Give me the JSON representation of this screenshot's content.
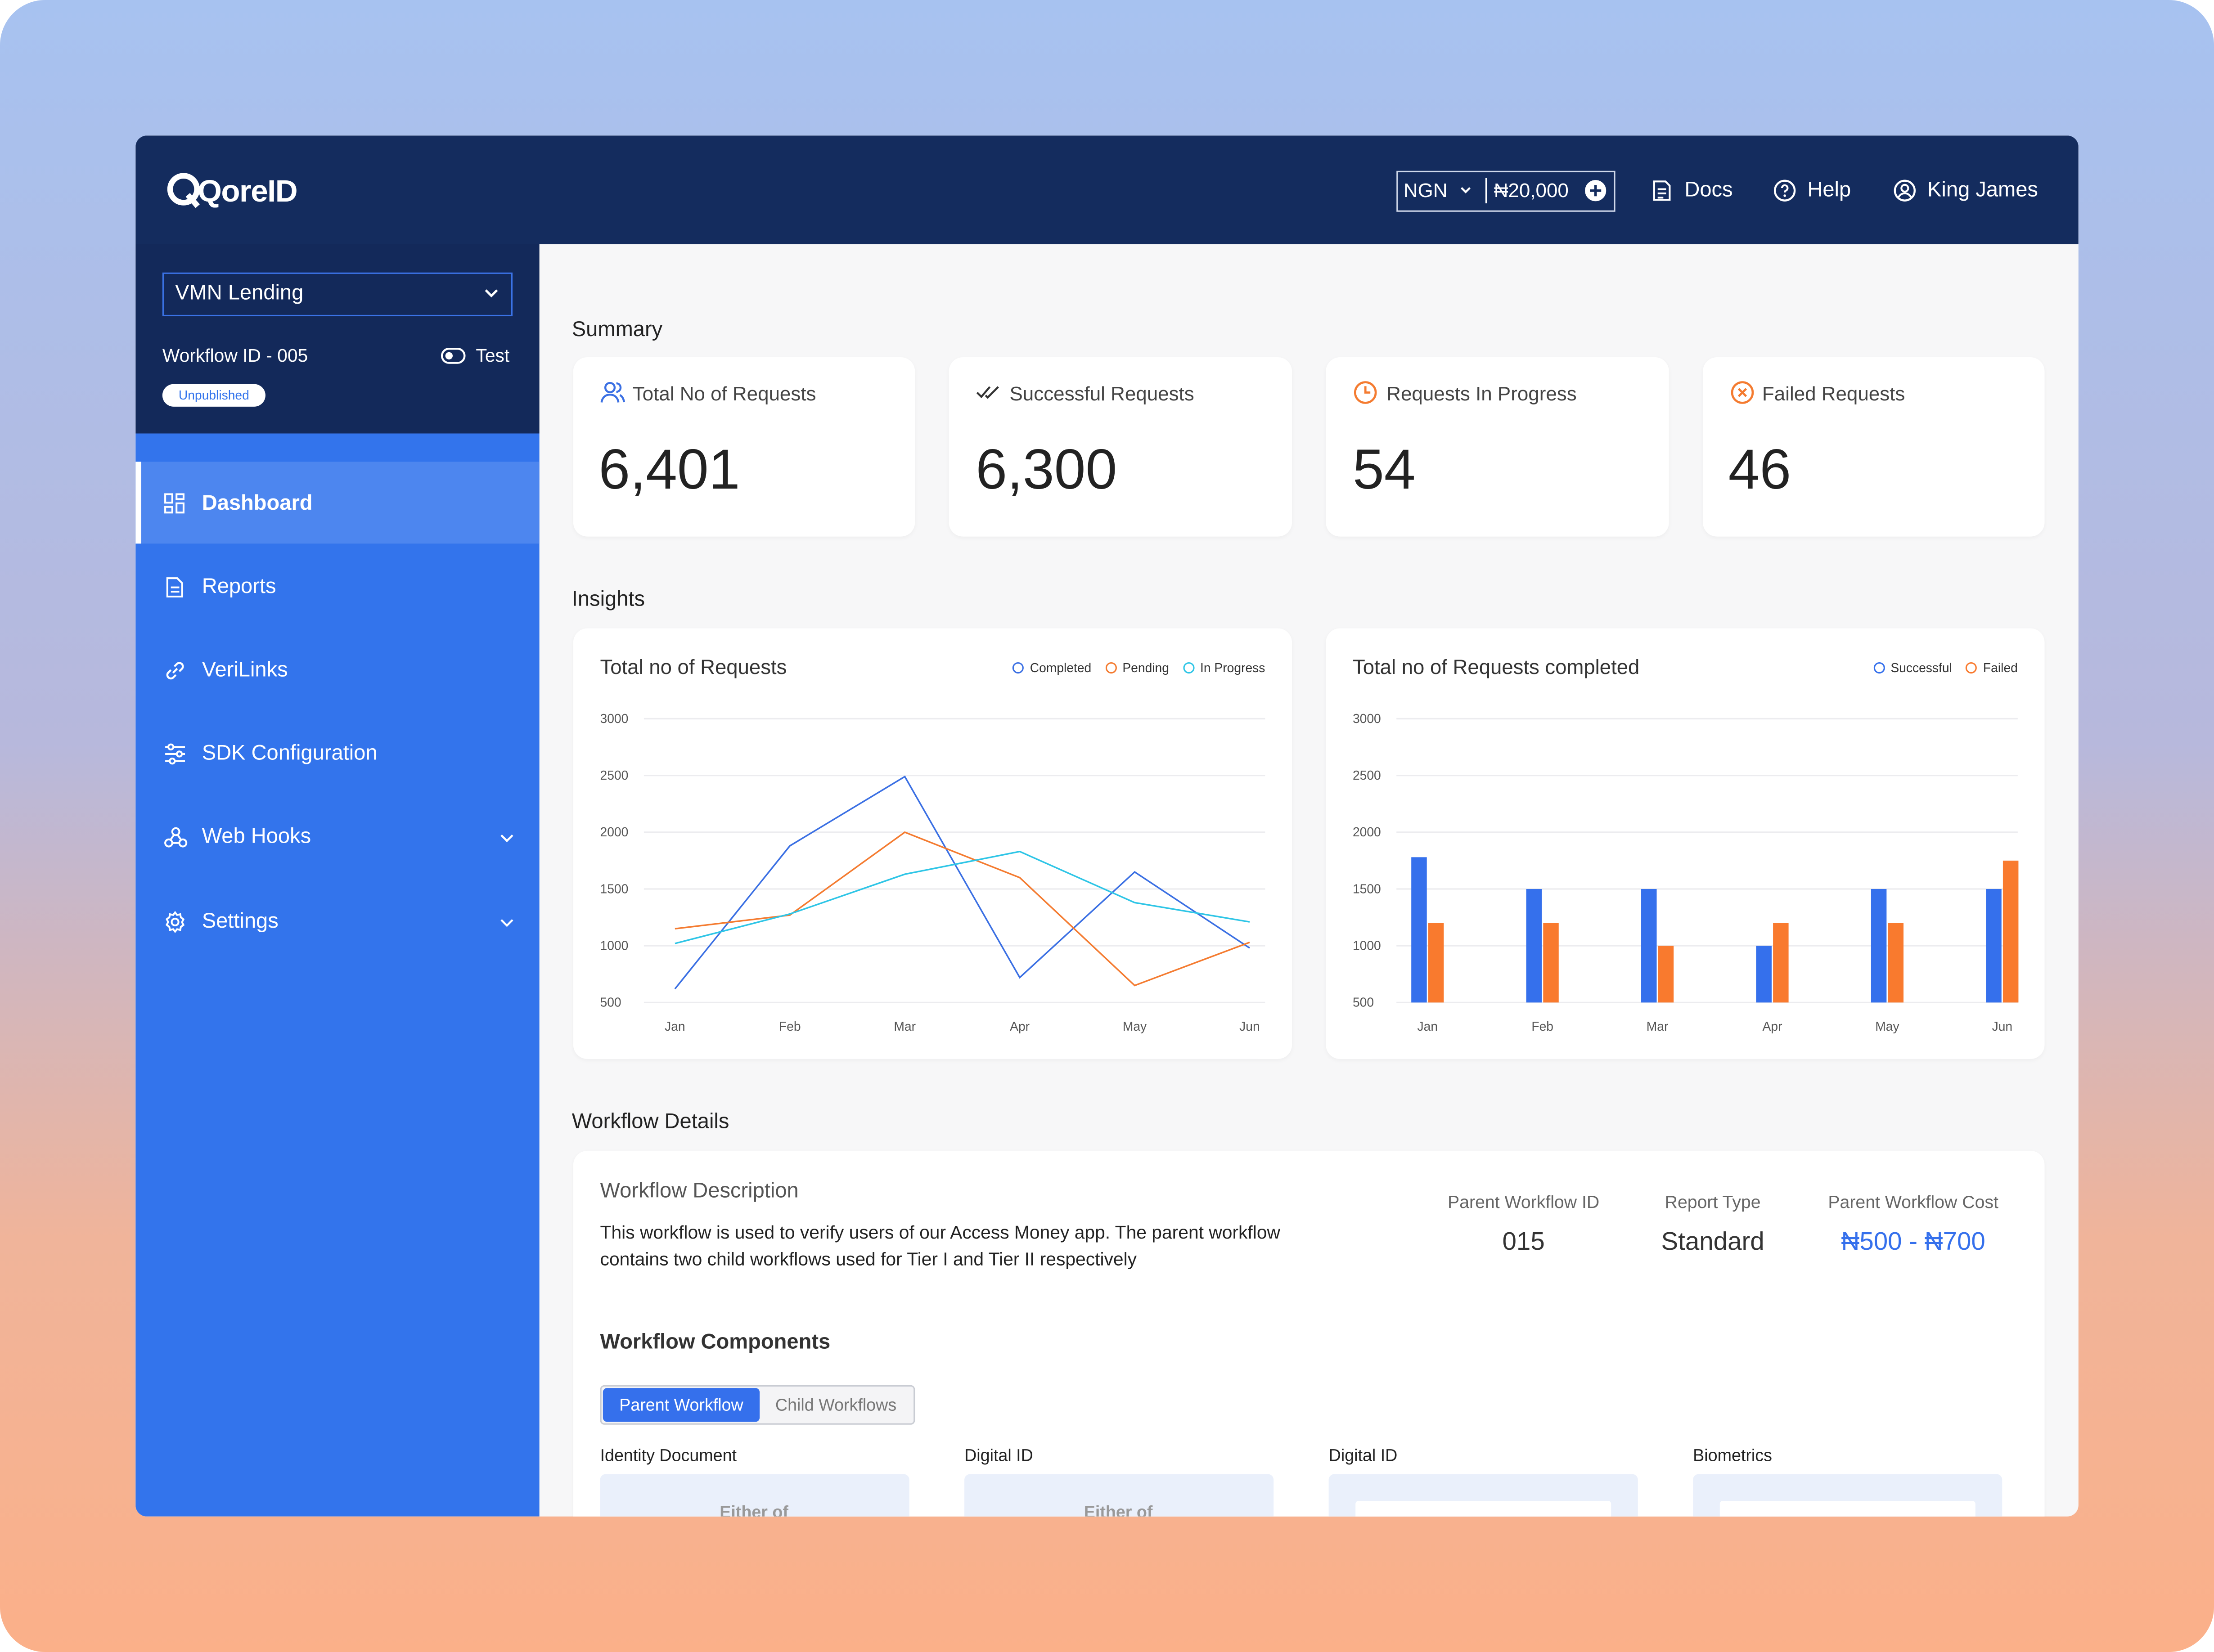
{
  "header": {
    "logo": "QoreID",
    "currency": "NGN",
    "balance": "₦20,000",
    "docs": "Docs",
    "help": "Help",
    "user": "King James"
  },
  "sidebar": {
    "workspace": "VMN Lending",
    "workflow_id": "Workflow ID - 005",
    "mode": "Test",
    "status": "Unpublished",
    "menu": [
      "Dashboard",
      "Reports",
      "VeriLinks",
      "SDK Configuration",
      "Web Hooks",
      "Settings"
    ]
  },
  "summary": {
    "title": "Summary",
    "cards": [
      {
        "label": "Total No of Requests",
        "value": "6,401"
      },
      {
        "label": "Successful Requests",
        "value": "6,300"
      },
      {
        "label": "Requests In Progress",
        "value": "54"
      },
      {
        "label": "Failed Requests",
        "value": "46"
      }
    ]
  },
  "insights": {
    "title": "Insights",
    "charts": [
      {
        "type": "line",
        "title": "Total no of Requests",
        "categories": [
          "Jan",
          "Feb",
          "Mar",
          "Apr",
          "May",
          "Jun"
        ],
        "series": [
          {
            "name": "Completed",
            "color": "#3a6fe3",
            "values": [
              620,
              1880,
              2490,
              720,
              1650,
              980
            ]
          },
          {
            "name": "Pending",
            "color": "#f47b30",
            "values": [
              1150,
              1270,
              2000,
              1600,
              650,
              1030
            ]
          },
          {
            "name": "In Progress",
            "color": "#2ec5e6",
            "values": [
              1020,
              1280,
              1630,
              1830,
              1380,
              1210
            ]
          }
        ],
        "ylim": [
          500,
          3000
        ],
        "yticks": [
          500,
          1000,
          1500,
          2000,
          2500,
          3000
        ],
        "grid": true
      },
      {
        "type": "bar",
        "title": "Total no of Requests completed",
        "categories": [
          "Jan",
          "Feb",
          "Mar",
          "Apr",
          "May",
          "Jun"
        ],
        "series": [
          {
            "name": "Successful",
            "color": "#3570ec",
            "values": [
              1780,
              1500,
              1500,
              1000,
              1500,
              1500
            ]
          },
          {
            "name": "Failed",
            "color": "#f97a2e",
            "values": [
              1200,
              1200,
              1000,
              1200,
              1200,
              1750
            ]
          }
        ],
        "ylim": [
          500,
          3000
        ],
        "yticks": [
          500,
          1000,
          1500,
          2000,
          2500,
          3000
        ],
        "grid": true
      }
    ]
  },
  "workflow": {
    "title": "Workflow Details",
    "description_title": "Workflow Description",
    "description_lines": [
      "This workflow is used to verify users of our Access Money app. The parent workflow",
      "contains two child workflows used for Tier I and Tier II respectively"
    ],
    "facts": [
      {
        "label": "Parent Workflow ID",
        "value": "015"
      },
      {
        "label": "Report Type",
        "value": "Standard"
      },
      {
        "label": "Parent Workflow Cost",
        "value": "₦500 - ₦700"
      }
    ],
    "components_title": "Workflow Components",
    "tabs": [
      "Parent Workflow",
      "Child Workflows"
    ],
    "components": [
      {
        "label": "Identity Document",
        "note": "Either of"
      },
      {
        "label": "Digital ID",
        "note": "Either of"
      },
      {
        "label": "Digital ID"
      },
      {
        "label": "Biometrics"
      }
    ]
  }
}
